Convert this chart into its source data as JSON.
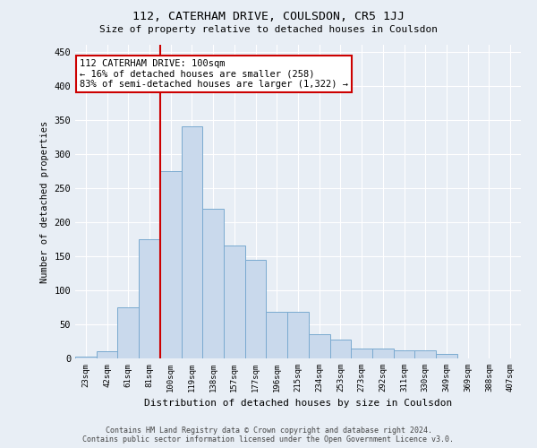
{
  "title": "112, CATERHAM DRIVE, COULSDON, CR5 1JJ",
  "subtitle": "Size of property relative to detached houses in Coulsdon",
  "xlabel": "Distribution of detached houses by size in Coulsdon",
  "ylabel": "Number of detached properties",
  "bar_labels": [
    "23sqm",
    "42sqm",
    "61sqm",
    "81sqm",
    "100sqm",
    "119sqm",
    "138sqm",
    "157sqm",
    "177sqm",
    "196sqm",
    "215sqm",
    "234sqm",
    "253sqm",
    "273sqm",
    "292sqm",
    "311sqm",
    "330sqm",
    "349sqm",
    "369sqm",
    "388sqm",
    "407sqm"
  ],
  "bar_values": [
    3,
    10,
    75,
    175,
    275,
    340,
    220,
    165,
    145,
    68,
    68,
    35,
    28,
    15,
    15,
    12,
    12,
    6,
    0,
    0,
    0
  ],
  "bar_color": "#c9d9ec",
  "bar_edge_color": "#7aaad0",
  "vline_color": "#cc0000",
  "vline_x": 4.5,
  "annotation_text": "112 CATERHAM DRIVE: 100sqm\n← 16% of detached houses are smaller (258)\n83% of semi-detached houses are larger (1,322) →",
  "annotation_box_color": "#ffffff",
  "annotation_box_edge": "#cc0000",
  "footer_line1": "Contains HM Land Registry data © Crown copyright and database right 2024.",
  "footer_line2": "Contains public sector information licensed under the Open Government Licence v3.0.",
  "bg_color": "#e8eef5",
  "ylim": [
    0,
    460
  ],
  "yticks": [
    0,
    50,
    100,
    150,
    200,
    250,
    300,
    350,
    400,
    450
  ]
}
